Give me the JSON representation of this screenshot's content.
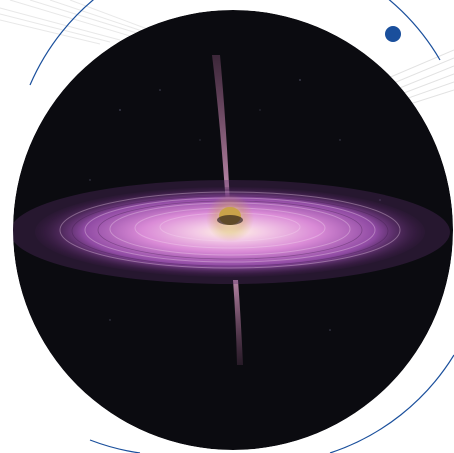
{
  "image": {
    "subject": "black-hole-accretion-disk-illustration",
    "colors": {
      "frame_accent": "#1a4f9c",
      "disk_pink": "#d98ad6",
      "disk_purple": "#7a3d8f",
      "core_gold": "#c9a24a",
      "jet": "#b06a9a",
      "space": "#0b0b10"
    }
  }
}
